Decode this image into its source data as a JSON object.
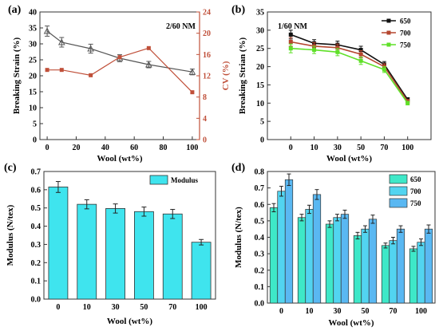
{
  "chart_data": [
    {
      "panel": "(a)",
      "type": "line",
      "note": "2/60 NM",
      "xlabel": "Wool (wt%)",
      "ylabel": "Breaking Strain (%)",
      "ylabel_right": "CV (%)",
      "x": [
        0,
        10,
        30,
        50,
        70,
        100
      ],
      "xlim": [
        -5,
        105
      ],
      "xticks": [
        "0",
        "20",
        "40",
        "60",
        "80",
        "100"
      ],
      "xtick_values": [
        0,
        20,
        40,
        60,
        80,
        100
      ],
      "ylim": [
        0,
        40
      ],
      "yticks": [
        "0",
        "5",
        "10",
        "15",
        "20",
        "25",
        "30",
        "35",
        "40"
      ],
      "ylim_right": [
        0,
        24
      ],
      "yticks_right": [
        "0",
        "4",
        "8",
        "12",
        "16",
        "20",
        "24"
      ],
      "left_axis_color": "#333333",
      "right_axis_color": "#c0503a",
      "series": [
        {
          "axis": "left",
          "color": "#555555",
          "marker": "triangle",
          "values": [
            34,
            30.5,
            28.5,
            25.5,
            23.5,
            21.2
          ],
          "errors": [
            1.6,
            1.5,
            1.4,
            1.1,
            1.0,
            0.9
          ]
        },
        {
          "axis": "right",
          "color": "#c0503a",
          "marker": "square",
          "values": [
            13.1,
            13.1,
            12.1,
            15.5,
            17.2,
            8.9
          ],
          "errors": [
            0,
            0,
            0,
            0,
            0,
            0
          ]
        }
      ]
    },
    {
      "panel": "(b)",
      "type": "line",
      "note": "1/60 NM",
      "xlabel": "Wool (wt%)",
      "ylabel": "Breaking Strian (%)",
      "categories": [
        "0",
        "10",
        "30",
        "50",
        "70",
        "100"
      ],
      "ylim": [
        0,
        35
      ],
      "yticks": [
        "0",
        "5",
        "10",
        "15",
        "20",
        "25",
        "30",
        "35"
      ],
      "legend": "top-right",
      "series": [
        {
          "name": "650",
          "color": "#111111",
          "values": [
            28.8,
            26.4,
            26.0,
            24.6,
            20.6,
            11.0
          ],
          "errors": [
            1.2,
            1.0,
            1.0,
            1.0,
            0.8,
            0.5
          ]
        },
        {
          "name": "700",
          "color": "#b5472f",
          "values": [
            26.8,
            25.6,
            25.2,
            23.4,
            20.0,
            10.5
          ],
          "errors": [
            1.2,
            1.0,
            1.0,
            1.0,
            0.8,
            0.5
          ]
        },
        {
          "name": "750",
          "color": "#5fe028",
          "values": [
            25.0,
            24.6,
            24.0,
            21.6,
            19.2,
            10.0
          ],
          "errors": [
            1.2,
            1.0,
            1.0,
            1.0,
            0.8,
            0.5
          ]
        }
      ]
    },
    {
      "panel": "(c)",
      "type": "bar",
      "xlabel": "Wool (wt%)",
      "ylabel": "Modulus (N/tex)",
      "categories": [
        "0",
        "10",
        "30",
        "50",
        "70",
        "100"
      ],
      "ylim": [
        0,
        0.7
      ],
      "yticks": [
        "0.0",
        "0.1",
        "0.2",
        "0.3",
        "0.4",
        "0.5",
        "0.6",
        "0.7"
      ],
      "legend": "top-right",
      "series": [
        {
          "name": "Modulus",
          "color": "#3fe4ee",
          "values": [
            0.615,
            0.52,
            0.497,
            0.48,
            0.467,
            0.312
          ],
          "errors": [
            0.03,
            0.025,
            0.025,
            0.025,
            0.025,
            0.015
          ]
        }
      ]
    },
    {
      "panel": "(d)",
      "type": "bar",
      "xlabel": "Wool (wt%)",
      "ylabel": "Modulus (N/tex)",
      "categories": [
        "0",
        "10",
        "30",
        "50",
        "70",
        "100"
      ],
      "ylim": [
        0,
        0.8
      ],
      "yticks": [
        "0.0",
        "0.1",
        "0.2",
        "0.3",
        "0.4",
        "0.5",
        "0.6",
        "0.7",
        "0.8"
      ],
      "legend": "top-right",
      "series": [
        {
          "name": "650",
          "color": "#3ee8c8",
          "values": [
            0.58,
            0.52,
            0.48,
            0.41,
            0.35,
            0.33
          ],
          "errors": [
            0.025,
            0.02,
            0.02,
            0.02,
            0.015,
            0.015
          ]
        },
        {
          "name": "700",
          "color": "#52d4f0",
          "values": [
            0.68,
            0.57,
            0.52,
            0.45,
            0.38,
            0.37
          ],
          "errors": [
            0.03,
            0.025,
            0.02,
            0.02,
            0.02,
            0.02
          ]
        },
        {
          "name": "750",
          "color": "#5ab8f2",
          "values": [
            0.75,
            0.66,
            0.54,
            0.51,
            0.45,
            0.45
          ],
          "errors": [
            0.035,
            0.03,
            0.025,
            0.025,
            0.02,
            0.025
          ]
        }
      ]
    }
  ]
}
